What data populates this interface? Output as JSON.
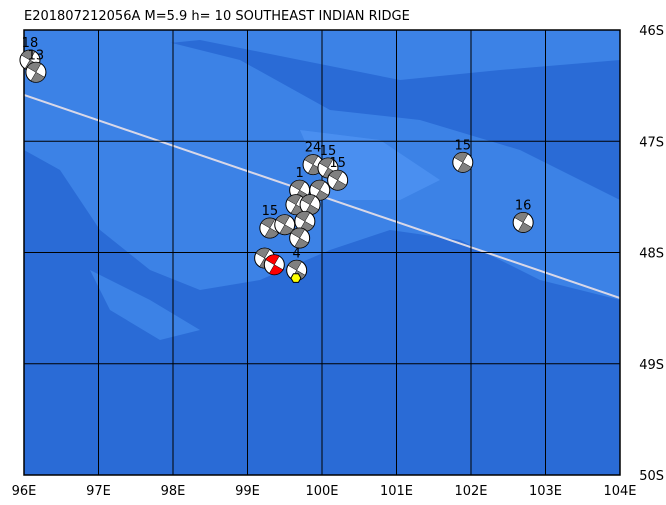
{
  "map": {
    "title": "E201807212056A M=5.9 h= 10 SOUTHEAST INDIAN RIDGE",
    "lon_range": [
      96,
      104
    ],
    "lat_range": [
      46,
      50
    ],
    "lon_ticks": [
      {
        "value": 96,
        "label": "96E"
      },
      {
        "value": 97,
        "label": "97E"
      },
      {
        "value": 98,
        "label": "98E"
      },
      {
        "value": 99,
        "label": "99E"
      },
      {
        "value": 100,
        "label": "100E"
      },
      {
        "value": 101,
        "label": "101E"
      },
      {
        "value": 102,
        "label": "102E"
      },
      {
        "value": 103,
        "label": "103E"
      },
      {
        "value": 104,
        "label": "104E"
      }
    ],
    "lat_ticks": [
      {
        "value": 46,
        "label": "46S"
      },
      {
        "value": 47,
        "label": "47S"
      },
      {
        "value": 48,
        "label": "48S"
      },
      {
        "value": 49,
        "label": "49S"
      },
      {
        "value": 50,
        "label": "50S"
      }
    ],
    "events": [
      {
        "lon": 96.08,
        "lat": 46.27,
        "label": "18",
        "color": "#808080"
      },
      {
        "lon": 96.16,
        "lat": 46.38,
        "label": "13",
        "color": "#808080"
      },
      {
        "lon": 101.89,
        "lat": 47.19,
        "label": "15",
        "color": "#808080"
      },
      {
        "lon": 102.7,
        "lat": 47.73,
        "label": "16",
        "color": "#808080"
      },
      {
        "lon": 99.88,
        "lat": 47.21,
        "label": "24",
        "color": "#808080"
      },
      {
        "lon": 100.08,
        "lat": 47.24,
        "label": "15",
        "color": "#808080"
      },
      {
        "lon": 100.21,
        "lat": 47.35,
        "label": "15",
        "color": "#808080"
      },
      {
        "lon": 99.7,
        "lat": 47.44,
        "label": "1",
        "color": "#808080"
      },
      {
        "lon": 99.97,
        "lat": 47.44,
        "color": "#808080"
      },
      {
        "lon": 99.65,
        "lat": 47.57,
        "color": "#808080"
      },
      {
        "lon": 99.84,
        "lat": 47.57,
        "color": "#808080"
      },
      {
        "lon": 99.3,
        "lat": 47.78,
        "label": "15",
        "color": "#808080"
      },
      {
        "lon": 99.5,
        "lat": 47.75,
        "color": "#808080"
      },
      {
        "lon": 99.77,
        "lat": 47.72,
        "color": "#808080"
      },
      {
        "lon": 99.7,
        "lat": 47.87,
        "color": "#808080"
      },
      {
        "lon": 99.23,
        "lat": 48.05,
        "color": "#808080"
      },
      {
        "lon": 99.36,
        "lat": 48.11,
        "color": "#ff0000"
      },
      {
        "lon": 99.66,
        "lat": 48.16,
        "label": "4",
        "color": "#808080"
      }
    ],
    "epicenter": {
      "lon": 99.65,
      "lat": 48.23,
      "color": "#ffff00"
    }
  }
}
